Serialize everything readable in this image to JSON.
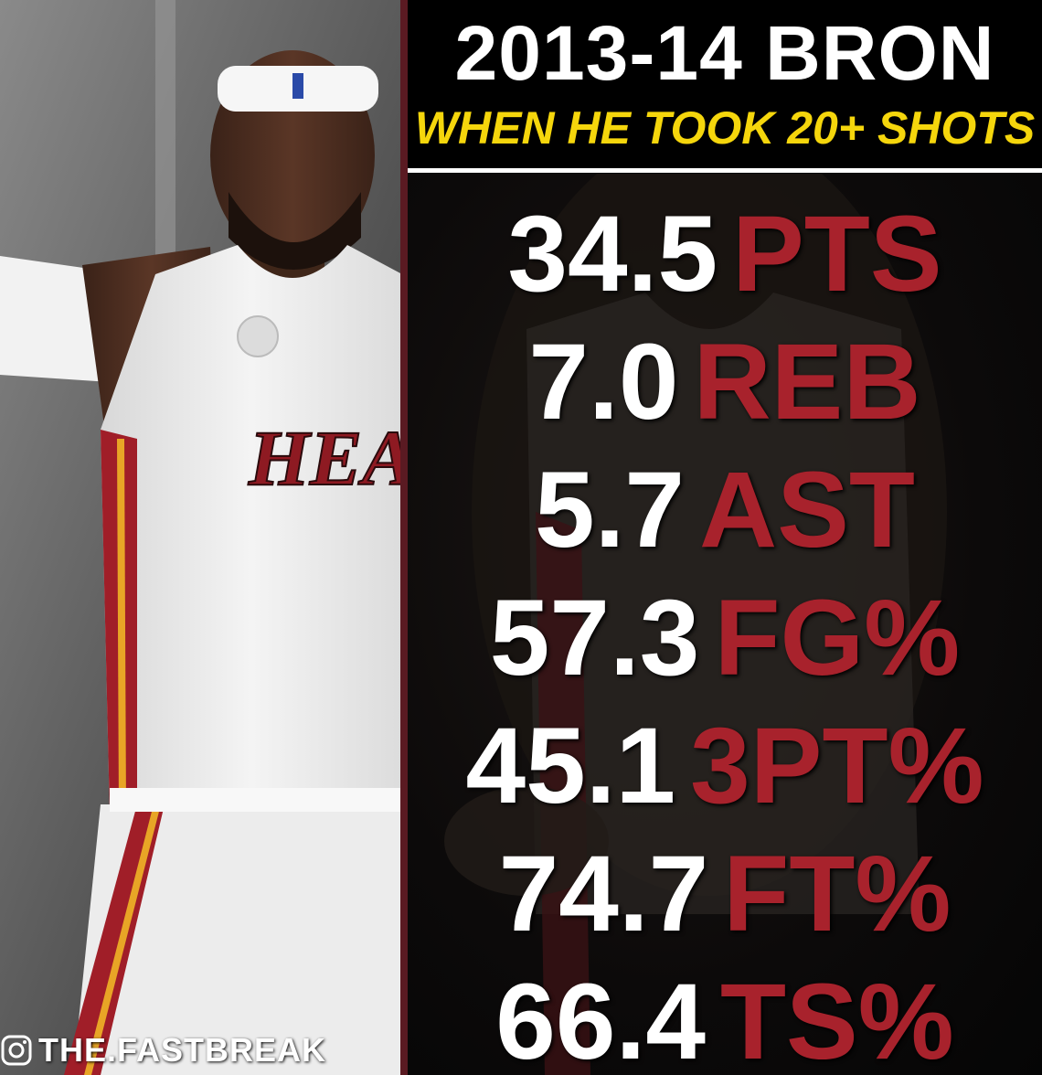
{
  "header": {
    "title": "2013-14 BRON",
    "subtitle": "WHEN HE TOOK 20+ SHOTS"
  },
  "stats": [
    {
      "value": "34.5",
      "label": "PTS"
    },
    {
      "value": "7.0",
      "label": "REB"
    },
    {
      "value": "5.7",
      "label": "AST"
    },
    {
      "value": "57.3",
      "label": "FG%"
    },
    {
      "value": "45.1",
      "label": "3PT%"
    },
    {
      "value": "74.7",
      "label": "FT%"
    },
    {
      "value": "66.4",
      "label": "TS%"
    }
  ],
  "photo": {
    "jersey_text": "HEA"
  },
  "watermark": {
    "text": "THE.FASTBREAK"
  },
  "colors": {
    "value": "#ffffff",
    "label": "#a8222c",
    "subtitle": "#f5d60c",
    "divider": "#5a1a22"
  }
}
